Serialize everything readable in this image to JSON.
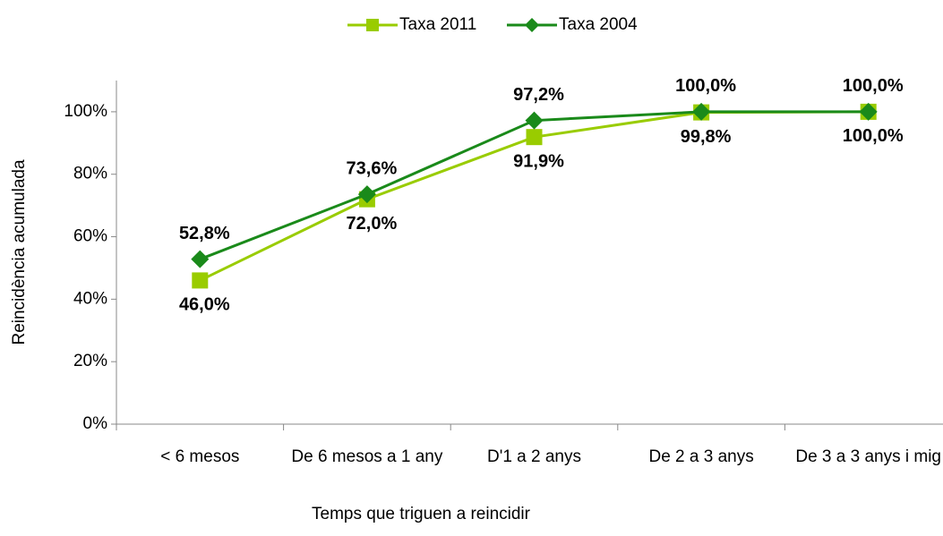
{
  "chart_data": {
    "type": "line",
    "x_label": "Temps que triguen a reincidir",
    "y_label": "Reincidència acumulada",
    "categories": [
      "< 6 mesos",
      "De 6 mesos a 1 any",
      "D'1 a 2 anys",
      "De 2 a 3 anys",
      "De 3 a 3 anys i mig"
    ],
    "series": [
      {
        "name": "Taxa 2011",
        "color": "#99cc00",
        "marker": "square",
        "label_position": "below",
        "values": [
          46.0,
          72.0,
          91.9,
          99.8,
          100.0
        ],
        "value_labels": [
          "46,0%",
          "72,0%",
          "91,9%",
          "99,8%",
          "100,0%"
        ]
      },
      {
        "name": "Taxa 2004",
        "color": "#1a8a1a",
        "marker": "diamond",
        "label_position": "above",
        "values": [
          52.8,
          73.6,
          97.2,
          100.0,
          100.0
        ],
        "value_labels": [
          "52,8%",
          "73,6%",
          "97,2%",
          "100,0%",
          "100,0%"
        ]
      }
    ],
    "ylim": [
      0,
      110
    ],
    "yticks": [
      {
        "value": 0,
        "label": "0%"
      },
      {
        "value": 20,
        "label": "20%"
      },
      {
        "value": 40,
        "label": "40%"
      },
      {
        "value": 60,
        "label": "60%"
      },
      {
        "value": 80,
        "label": "80%"
      },
      {
        "value": 100,
        "label": "100%"
      }
    ],
    "legend": "top"
  }
}
